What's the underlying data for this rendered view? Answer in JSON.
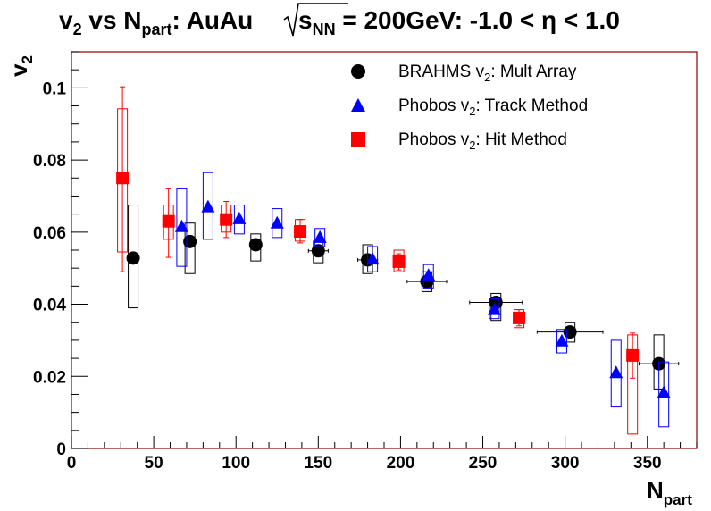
{
  "title": {
    "lead": "v",
    "lead_sub": "2",
    "vs": " vs N",
    "vs_sub": "part",
    "mid": ": AuAu ",
    "sqrt_s": "s",
    "sqrt_sub": "NN",
    "tail": " = 200GeV: -1.0 < η < 1.0"
  },
  "axes": {
    "xlabel": "N",
    "xlabel_sub": "part",
    "ylabel": "v",
    "ylabel_sub": "2",
    "xlim": [
      0,
      380
    ],
    "ylim": [
      0,
      0.11
    ],
    "x_ticks": [
      0,
      50,
      100,
      150,
      200,
      250,
      300,
      350
    ],
    "x_tick_labels": [
      "0",
      "50",
      "100",
      "150",
      "200",
      "250",
      "300",
      "350"
    ],
    "y_ticks": [
      0,
      0.02,
      0.04,
      0.06,
      0.08,
      0.1
    ],
    "y_tick_labels": [
      "0",
      "0.02",
      "0.04",
      "0.06",
      "0.08",
      "0.1"
    ]
  },
  "colors": {
    "brahms": "#000000",
    "track": "#0000ff",
    "hit": "#ff0000",
    "frame": "#8b0000"
  },
  "legend": {
    "position": "top-right",
    "items": [
      {
        "pre": "BRAHMS v",
        "sub": "2",
        "post": ": Mult Array",
        "marker": "circle",
        "color": "#000000"
      },
      {
        "pre": "Phobos v",
        "sub": "2",
        "post": ": Track Method",
        "marker": "triangle",
        "color": "#0000ff"
      },
      {
        "pre": "Phobos v",
        "sub": "2",
        "post": ": Hit Method",
        "marker": "square",
        "color": "#ff0000"
      }
    ]
  },
  "chart_data": {
    "type": "scatter",
    "grid": false,
    "series": [
      {
        "name": "BRAHMS v2: Mult Array",
        "marker": "circle",
        "color": "#000000",
        "points": [
          {
            "x": 37.5,
            "y": 0.0528,
            "xerr": 0,
            "yerr": 0,
            "sys_lo": 0.039,
            "sys_hi": 0.0675
          },
          {
            "x": 72,
            "y": 0.0574,
            "xerr": 0,
            "yerr": 0,
            "sys_lo": 0.0485,
            "sys_hi": 0.0625
          },
          {
            "x": 112,
            "y": 0.0565,
            "xerr": 0,
            "yerr": 0,
            "sys_lo": 0.052,
            "sys_hi": 0.0595
          },
          {
            "x": 150,
            "y": 0.0548,
            "xerr": 6,
            "yerr": 0,
            "sys_lo": 0.0515,
            "sys_hi": 0.0575
          },
          {
            "x": 180,
            "y": 0.0523,
            "xerr": 6,
            "yerr": 0,
            "sys_lo": 0.0485,
            "sys_hi": 0.0565
          },
          {
            "x": 216,
            "y": 0.0463,
            "xerr": 12,
            "yerr": 0,
            "sys_lo": 0.0435,
            "sys_hi": 0.049
          },
          {
            "x": 258,
            "y": 0.0405,
            "xerr": 16,
            "yerr": 0,
            "sys_lo": 0.0355,
            "sys_hi": 0.043
          },
          {
            "x": 303,
            "y": 0.0323,
            "xerr": 20,
            "yerr": 0,
            "sys_lo": 0.0295,
            "sys_hi": 0.035
          },
          {
            "x": 357,
            "y": 0.0235,
            "xerr": 12,
            "yerr": 0,
            "sys_lo": 0.0165,
            "sys_hi": 0.0315
          }
        ]
      },
      {
        "name": "Phobos v2: Track Method",
        "marker": "triangle",
        "color": "#0000ff",
        "points": [
          {
            "x": 67,
            "y": 0.0615,
            "sys_lo": 0.0505,
            "sys_hi": 0.072
          },
          {
            "x": 83,
            "y": 0.067,
            "sys_lo": 0.058,
            "sys_hi": 0.0765
          },
          {
            "x": 102,
            "y": 0.0637,
            "sys_lo": 0.0595,
            "sys_hi": 0.0675
          },
          {
            "x": 125,
            "y": 0.0625,
            "sys_lo": 0.0585,
            "sys_hi": 0.0665
          },
          {
            "x": 151,
            "y": 0.0585,
            "sys_lo": 0.056,
            "sys_hi": 0.061
          },
          {
            "x": 183,
            "y": 0.0525,
            "sys_lo": 0.049,
            "sys_hi": 0.056
          },
          {
            "x": 217,
            "y": 0.048,
            "sys_lo": 0.0445,
            "sys_hi": 0.051
          },
          {
            "x": 257,
            "y": 0.0385,
            "sys_lo": 0.036,
            "sys_hi": 0.0415
          },
          {
            "x": 298,
            "y": 0.0298,
            "sys_lo": 0.0265,
            "sys_hi": 0.033
          },
          {
            "x": 331,
            "y": 0.021,
            "sys_lo": 0.0115,
            "sys_hi": 0.03
          },
          {
            "x": 360,
            "y": 0.0155,
            "sys_lo": 0.006,
            "sys_hi": 0.024
          }
        ]
      },
      {
        "name": "Phobos v2: Hit Method",
        "marker": "square",
        "color": "#ff0000",
        "points": [
          {
            "x": 31,
            "y": 0.075,
            "yerr_lo": 0.049,
            "yerr_hi": 0.1003,
            "sys_lo": 0.0545,
            "sys_hi": 0.0942
          },
          {
            "x": 59,
            "y": 0.063,
            "yerr_lo": 0.053,
            "yerr_hi": 0.072,
            "sys_lo": 0.058,
            "sys_hi": 0.0675
          },
          {
            "x": 94,
            "y": 0.0635,
            "yerr_lo": 0.0585,
            "yerr_hi": 0.0685,
            "sys_lo": 0.06,
            "sys_hi": 0.0675
          },
          {
            "x": 139,
            "y": 0.0602,
            "yerr_lo": 0.057,
            "yerr_hi": 0.0635,
            "sys_lo": 0.0575,
            "sys_hi": 0.0635
          },
          {
            "x": 199,
            "y": 0.0518,
            "yerr_lo": 0.0495,
            "yerr_hi": 0.054,
            "sys_lo": 0.049,
            "sys_hi": 0.055
          },
          {
            "x": 272,
            "y": 0.0362,
            "yerr_lo": 0.034,
            "yerr_hi": 0.0385,
            "sys_lo": 0.0335,
            "sys_hi": 0.0385
          },
          {
            "x": 341,
            "y": 0.0258,
            "yerr_lo": 0.0195,
            "yerr_hi": 0.032,
            "sys_lo": 0.004,
            "sys_hi": 0.0315
          }
        ]
      }
    ]
  }
}
